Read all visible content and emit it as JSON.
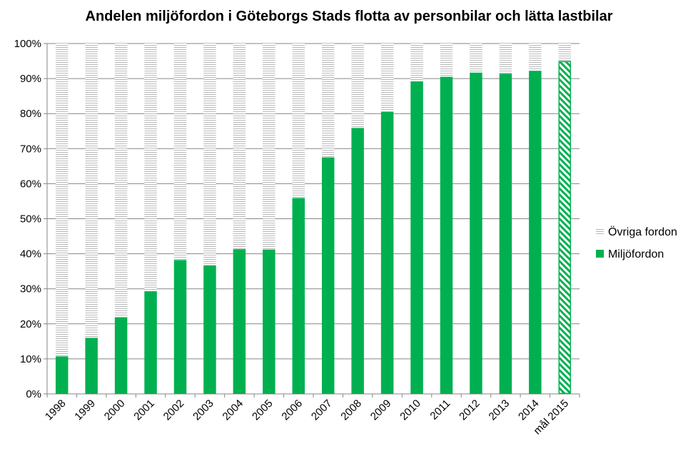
{
  "chart_data": {
    "type": "bar",
    "stacked": true,
    "title": "Andelen miljöfordon i Göteborgs Stads flotta av personbilar och lätta lastbilar",
    "categories": [
      "1998",
      "1999",
      "2000",
      "2001",
      "2002",
      "2003",
      "2004",
      "2005",
      "2006",
      "2007",
      "2008",
      "2009",
      "2010",
      "2011",
      "2012",
      "2013",
      "2014",
      "mål 2015"
    ],
    "series": [
      {
        "name": "Miljöfordon",
        "color": "#00b050",
        "values": [
          10.7,
          16.0,
          21.8,
          29.3,
          38.2,
          36.7,
          41.3,
          41.2,
          55.9,
          67.5,
          75.9,
          80.5,
          89.2,
          90.5,
          91.7,
          91.4,
          92.2,
          95.0
        ]
      },
      {
        "name": "Övriga fordon",
        "color": "#c8c8c8",
        "values": [
          89.3,
          84.0,
          78.2,
          70.7,
          61.8,
          63.3,
          58.7,
          58.8,
          44.1,
          32.5,
          24.1,
          19.5,
          10.8,
          9.5,
          8.3,
          8.6,
          7.8,
          5.0
        ]
      }
    ],
    "target_category": "mål 2015",
    "target_fill": "hatched-green",
    "ylim": [
      0,
      100
    ],
    "yticks": [
      "0%",
      "10%",
      "20%",
      "30%",
      "40%",
      "50%",
      "60%",
      "70%",
      "80%",
      "90%",
      "100%"
    ],
    "grid": true,
    "legend_position": "right",
    "legend": [
      "Övriga fordon",
      "Miljöfordon"
    ]
  }
}
